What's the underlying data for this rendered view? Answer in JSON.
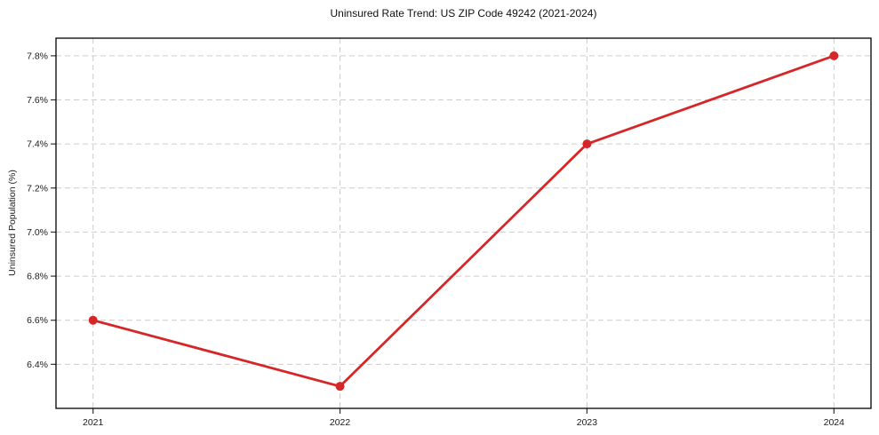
{
  "chart_data": {
    "type": "line",
    "title": "Uninsured Rate Trend: US ZIP Code 49242 (2021-2024)",
    "xlabel": "",
    "ylabel": "Uninsured Population (%)",
    "x": [
      2021,
      2022,
      2023,
      2024
    ],
    "x_tick_labels": [
      "2021",
      "2022",
      "2023",
      "2024"
    ],
    "values": [
      6.6,
      6.3,
      7.4,
      7.8
    ],
    "y_ticks": [
      6.4,
      6.6,
      6.8,
      7.0,
      7.2,
      7.4,
      7.6,
      7.8
    ],
    "y_tick_labels": [
      "6.4%",
      "6.6%",
      "6.8%",
      "7.0%",
      "7.2%",
      "7.4%",
      "7.6%",
      "7.8%"
    ],
    "xlim": [
      2020.85,
      2024.15
    ],
    "ylim": [
      6.2,
      7.88
    ],
    "grid": true,
    "legend": false,
    "line_color": "#d62728",
    "grid_color": "#cccccc",
    "marker": "circle",
    "marker_radius": 5
  }
}
